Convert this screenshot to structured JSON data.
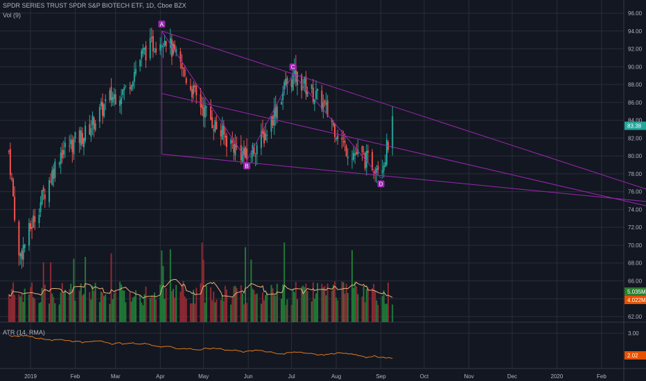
{
  "header": {
    "title": "SPDR SERIES TRUST SPDR S&P BIOTECH ETF, 1D, Cboe BZX",
    "vol_label": "Vol (9)",
    "atr_label": "ATR (14, RMA)"
  },
  "colors": {
    "background": "#131722",
    "grid": "#2a2e39",
    "up": "#26a69a",
    "down": "#ef5350",
    "volume_up": "#1f7a37",
    "volume_down": "#8f2a33",
    "pattern": "#9c27b0",
    "ma_line": "#f0b27a",
    "atr_line": "#e07b1a",
    "price_tag": "#26a69a",
    "vol_tag": "#2e7d32",
    "ma_tag": "#e65100"
  },
  "chart_data": [
    {
      "type": "candlestick",
      "title": "SPDR SERIES TRUST SPDR S&P BIOTECH ETF, 1D, Cboe BZX",
      "x_ticks": [
        "2019",
        "Feb",
        "Mar",
        "Apr",
        "May",
        "Jun",
        "Jul",
        "Aug",
        "Sep",
        "Oct",
        "Nov",
        "Dec",
        "2020",
        "Feb"
      ],
      "y_ticks": [
        "96.00",
        "94.00",
        "92.00",
        "90.00",
        "88.00",
        "86.00",
        "84.00",
        "82.00",
        "80.00",
        "78.00",
        "76.00",
        "74.00",
        "72.00",
        "70.00",
        "68.00",
        "66.00",
        "64.00",
        "62.00"
      ],
      "ylim": [
        61,
        97
      ],
      "last_price": "83.38",
      "approx_close_path": [
        {
          "date": "2018-12-17",
          "close": 80.5
        },
        {
          "date": "2018-12-24",
          "close": 68.5
        },
        {
          "date": "2019-01-07",
          "close": 74.5
        },
        {
          "date": "2019-01-22",
          "close": 80.5
        },
        {
          "date": "2019-02-08",
          "close": 82.5
        },
        {
          "date": "2019-02-25",
          "close": 86.5
        },
        {
          "date": "2019-03-08",
          "close": 87.5
        },
        {
          "date": "2019-03-20",
          "close": 91.5
        },
        {
          "date": "2019-04-04",
          "close": 93.5
        },
        {
          "date": "2019-04-26",
          "close": 86.5
        },
        {
          "date": "2019-05-13",
          "close": 82.5
        },
        {
          "date": "2019-05-31",
          "close": 79.8
        },
        {
          "date": "2019-06-13",
          "close": 82.5
        },
        {
          "date": "2019-06-27",
          "close": 88.0
        },
        {
          "date": "2019-07-03",
          "close": 89.0
        },
        {
          "date": "2019-07-22",
          "close": 86.0
        },
        {
          "date": "2019-08-07",
          "close": 81.0
        },
        {
          "date": "2019-08-27",
          "close": 79.0
        },
        {
          "date": "2019-09-03",
          "close": 79.5
        },
        {
          "date": "2019-09-09",
          "close": 83.38
        }
      ],
      "pattern_points": [
        {
          "label": "A",
          "date": "2019-04-02",
          "price": 94.0
        },
        {
          "label": "B",
          "date": "2019-05-31",
          "price": 79.5
        },
        {
          "label": "C",
          "date": "2019-07-02",
          "price": 89.2
        },
        {
          "label": "D",
          "date": "2019-09-01",
          "price": 77.5
        }
      ]
    },
    {
      "type": "bar",
      "title": "Vol (9)",
      "tags": [
        "5.035M",
        "4.022M"
      ]
    },
    {
      "type": "line",
      "title": "ATR (14, RMA)",
      "y_ticks": [
        "3.00"
      ],
      "last_value": "2.02"
    }
  ]
}
